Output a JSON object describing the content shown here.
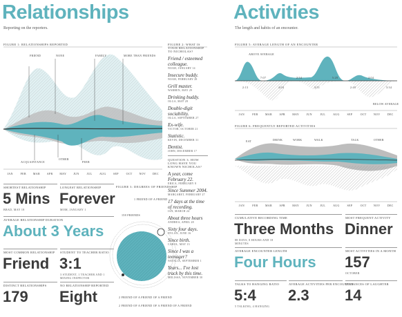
{
  "months": [
    "JAN",
    "FEB",
    "MAR",
    "APR",
    "MAY",
    "JUN",
    "JUL",
    "AUG",
    "SEP",
    "OCT",
    "NOV",
    "DEC"
  ],
  "left": {
    "title": "Relationships",
    "subtitle": "Reporting on the reporters.",
    "figure1": {
      "caption": "FIGURE 1: RELATIONSHIPS REPORTED",
      "labels": [
        "FRIEND",
        "NONE",
        "FAMILY",
        "MORE THAN FRIENDS",
        "ACQUAINTANCE",
        "OTHER",
        "PEER"
      ]
    },
    "stats": [
      {
        "label": "SHORTEST RELATIONSHIP",
        "value": "5 Mins",
        "note": "BRAD, MAY 18"
      },
      {
        "label": "LONGEST RELATIONSHIP",
        "value": "Forever",
        "note": "MOM, JANUARY 1"
      },
      {
        "label": "AVERAGE RELATIONSHIP DURATION",
        "value": "About 3 Years"
      },
      {
        "label": "MOST COMMON RELATIONSHIP",
        "value": "Friend"
      },
      {
        "label": "STUDENT TO TEACHER RATIO",
        "value": "3:1",
        "note": "3 STUDENT, 1 TEACHER AND 1 MIXING INSPECTOR"
      },
      {
        "label": "DISTINCT RELATIONSHIPS",
        "value": "179"
      },
      {
        "label": "NO RELATIONSHIP REPORTED",
        "value": "Eight"
      }
    ],
    "figure3": {
      "caption": "FIGURE 3: DEGREES OF FRIENDSHIP",
      "labels": [
        "1 FRIEND OF A FRIEND",
        "158 FRIENDS",
        "2 FRIEND OF A FRIEND OF A FRIEND",
        "2 FRIEND OF A FRIEND OF A FRIEND OF A FRIEND"
      ]
    }
  },
  "middle": {
    "question2": "FIGURE 2: WHAT IS YOUR RELATIONSHIP TO NICHOLAS?",
    "answers2": [
      {
        "quote": "Friend / esteemed colleague.",
        "who": "NOAH, JANUARY 14"
      },
      {
        "quote": "Insecure buddy.",
        "who": "NOAH, FEBRUARY 28"
      },
      {
        "quote": "Grill master.",
        "who": "WARREN, MAY 29"
      },
      {
        "quote": "Drinking buddy.",
        "who": "OLGA, MAY 28"
      },
      {
        "quote": "Double-digit sociability.",
        "who": "OLGA, SEPTEMBER 27"
      },
      {
        "quote": "Ex-wife.",
        "who": "VICTOR, OCTOBER 21"
      },
      {
        "quote": "Statistic.",
        "who": "KEVIN, DECEMBER 31"
      },
      {
        "quote": "Dentist.",
        "who": "JOHN, DECEMBER 17"
      }
    ],
    "question3": "QUESTION 3: HOW LONG HAVE YOU KNOWN NICHOLAS?",
    "answers3": [
      {
        "quote": "A year, come February 22.",
        "who": "ERICA, FEBRUARY 8"
      },
      {
        "quote": "Since Summer 2004.",
        "who": "MARGARET, FEBRUARY 27"
      },
      {
        "quote": "17 days at the time of recording.",
        "who": "IAN, MARCH 24"
      },
      {
        "quote": "About three hours",
        "who": "ANDREA, APRIL 28"
      },
      {
        "quote": "Sixty four days.",
        "who": "DYLAN, JUNE 16"
      },
      {
        "quote": "Since birth.",
        "who": "CAROL, MAY 13"
      },
      {
        "quote": "Since I was a teenager?",
        "who": "NATALIA, SEPTEMBER 1"
      },
      {
        "quote": "Years... I've lost track by this time.",
        "who": "MELISSA, NOVEMBER 30"
      }
    ]
  },
  "right": {
    "title": "Activities",
    "subtitle": "The length and habits of an encounter.",
    "figure5": {
      "caption": "FIGURE 5: AVERAGE LENGTH OF AN ENCOUNTER",
      "labels": [
        "ABOVE AVERAGE",
        "BELOW AVERAGE"
      ],
      "times": [
        "2:13",
        "7:07",
        "4:04",
        "2:34",
        "3:51",
        "5:28",
        "2:48",
        "4:04",
        "3:34"
      ]
    },
    "figure6": {
      "caption": "FIGURE 6: FREQUENTLY REPORTED ACTIVITIES",
      "labels": [
        "EAT",
        "DRINK",
        "WORK",
        "WALK",
        "TALK",
        "OTHER"
      ]
    },
    "stats": [
      {
        "label": "CUMULATIVE RECORDING TIME",
        "value": "Three Months",
        "note": "88 DAYS, 8 HOURS AND 18 MINUTES"
      },
      {
        "label": "MOST FREQUENT ACTIVITY",
        "value": "Dinner"
      },
      {
        "label": "AVERAGE ENCOUNTER LENGTH",
        "value": "Four Hours"
      },
      {
        "label": "MOST ACTIVITIES IN A MONTH",
        "value": "157",
        "note": "OCTOBER"
      },
      {
        "label": "TALKS TO HANGING RATIO",
        "value": "5:4",
        "note": "5 TALKING, 4 HANGING"
      },
      {
        "label": "AVERAGE ACTIVITIES PER ENCOUNTER",
        "value": "2.3"
      },
      {
        "label": "INSTANCES OF LAUGHTER",
        "value": "14"
      }
    ]
  }
}
